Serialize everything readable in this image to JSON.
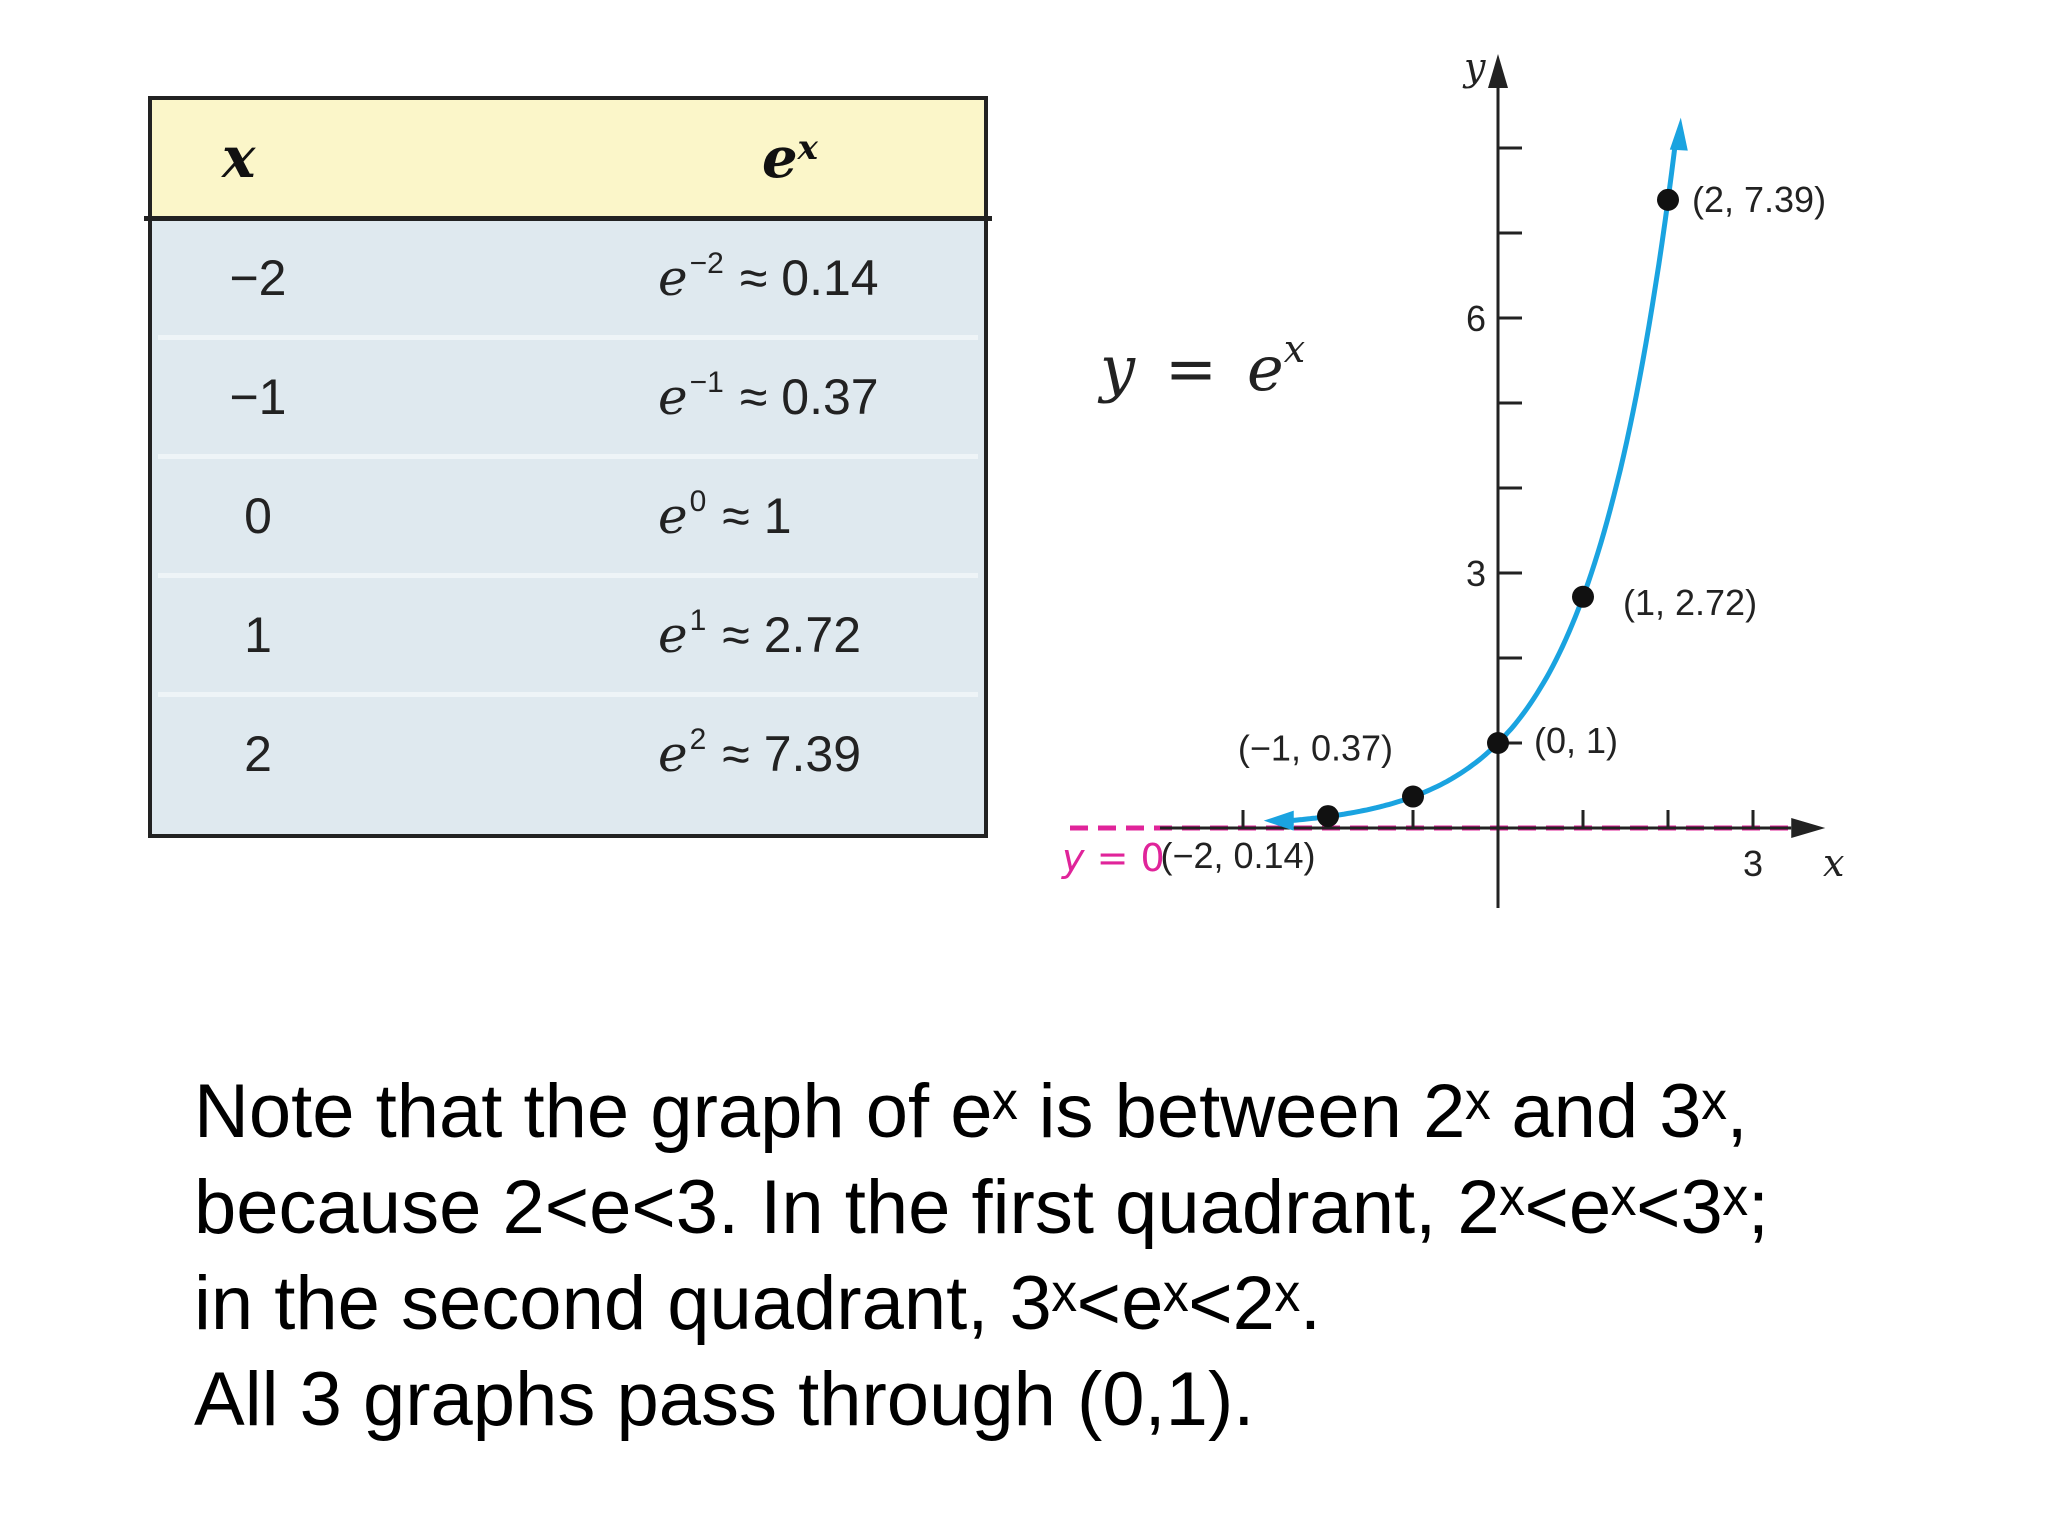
{
  "table": {
    "header": {
      "x": "x",
      "ex_base": "e",
      "ex_exp": "x"
    },
    "rows": [
      {
        "x": "−2",
        "base": "e",
        "exp": "−2",
        "approx": "≈",
        "value": "0.14"
      },
      {
        "x": "−1",
        "base": "e",
        "exp": "−1",
        "approx": "≈",
        "value": "0.37"
      },
      {
        "x": "0",
        "base": "e",
        "exp": "0",
        "approx": "≈",
        "value": "1"
      },
      {
        "x": "1",
        "base": "e",
        "exp": "1",
        "approx": "≈",
        "value": "2.72"
      },
      {
        "x": "2",
        "base": "e",
        "exp": "2",
        "approx": "≈",
        "value": "7.39"
      }
    ]
  },
  "equation": {
    "lhs": "y",
    "op": "=",
    "base": "e",
    "exp": "x"
  },
  "asymptote": {
    "var": "y",
    "op": " = ",
    "value": "0"
  },
  "chart_data": {
    "type": "line",
    "function": "y = e^x",
    "xlabel": "x",
    "ylabel": "y",
    "xlim": [
      -3.1,
      4.0
    ],
    "ylim": [
      -0.9,
      8.9
    ],
    "xticks": [
      -3,
      -2,
      -1,
      1,
      2,
      3
    ],
    "xtick_labels": [
      {
        "value": 3,
        "label": "3"
      }
    ],
    "yticks": [
      1,
      2,
      3,
      4,
      5,
      6,
      7,
      8
    ],
    "ytick_labels": [
      {
        "value": 3,
        "label": "3"
      },
      {
        "value": 6,
        "label": "6"
      }
    ],
    "points": [
      {
        "x": -2,
        "y": 0.14,
        "label": "(−2, 0.14)"
      },
      {
        "x": -1,
        "y": 0.37,
        "label": "(−1, 0.37)"
      },
      {
        "x": 0,
        "y": 1,
        "label": "(0, 1)"
      },
      {
        "x": 1,
        "y": 2.72,
        "label": "(1, 2.72)"
      },
      {
        "x": 2,
        "y": 7.39,
        "label": "(2, 7.39)"
      }
    ],
    "asymptote": {
      "y": 0
    },
    "colors": {
      "curve": "#1aa3e0",
      "asymptote": "#e0249a",
      "axis": "#222222"
    }
  },
  "note": {
    "lines": [
      "Note that the graph of eˣ is between 2ˣ and 3ˣ,",
      "because 2<e<3. In the first quadrant, 2ˣ<eˣ<3ˣ;",
      "in the second quadrant, 3ˣ<eˣ<2ˣ.",
      "All 3 graphs pass through (0,1)."
    ]
  }
}
